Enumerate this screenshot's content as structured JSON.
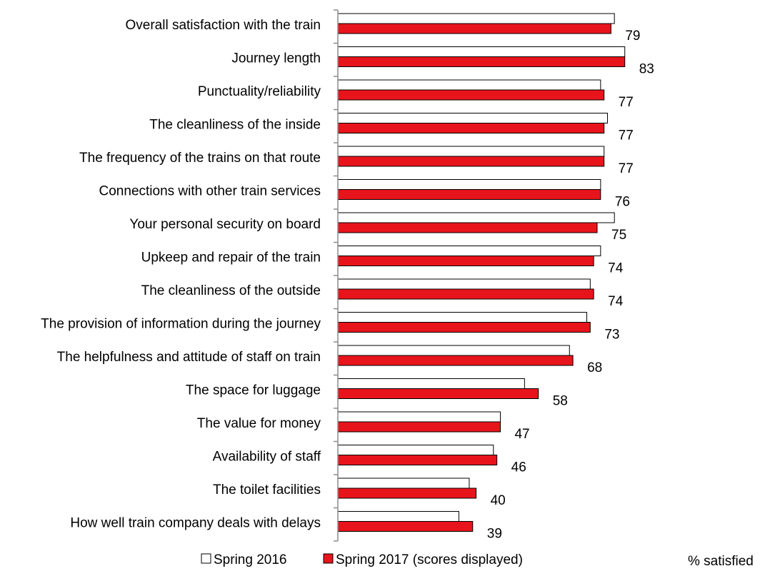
{
  "chart_data": {
    "type": "bar",
    "orientation": "horizontal",
    "title": "",
    "xlabel": "% satisfied",
    "ylabel": "",
    "xlim": [
      0,
      100
    ],
    "grid": false,
    "legend_placement": "bottom",
    "data_labels_series": "Spring 2017 (scores displayed)",
    "categories": [
      "Overall satisfaction with the train",
      "Journey length",
      "Punctuality/reliability",
      "The cleanliness of the inside",
      "The frequency of the trains on that route",
      "Connections with other train services",
      "Your personal security on board",
      "Upkeep and repair of the train",
      "The cleanliness of the outside",
      "The provision of information during the journey",
      "The helpfulness and attitude of staff on train",
      "The space for luggage",
      "The value for money",
      "Availability of staff",
      "The toilet facilities",
      "How well train company deals with delays"
    ],
    "series": [
      {
        "name": "Spring 2016",
        "color": "#ffffff",
        "stroke": "#000000",
        "values": [
          80,
          83,
          76,
          78,
          77,
          76,
          80,
          76,
          73,
          72,
          67,
          54,
          47,
          45,
          38,
          35
        ]
      },
      {
        "name": "Spring 2017 (scores displayed)",
        "color": "#e8141c",
        "stroke": "#000000",
        "values": [
          79,
          83,
          77,
          77,
          77,
          76,
          75,
          74,
          74,
          73,
          68,
          58,
          47,
          46,
          40,
          39
        ]
      }
    ]
  }
}
